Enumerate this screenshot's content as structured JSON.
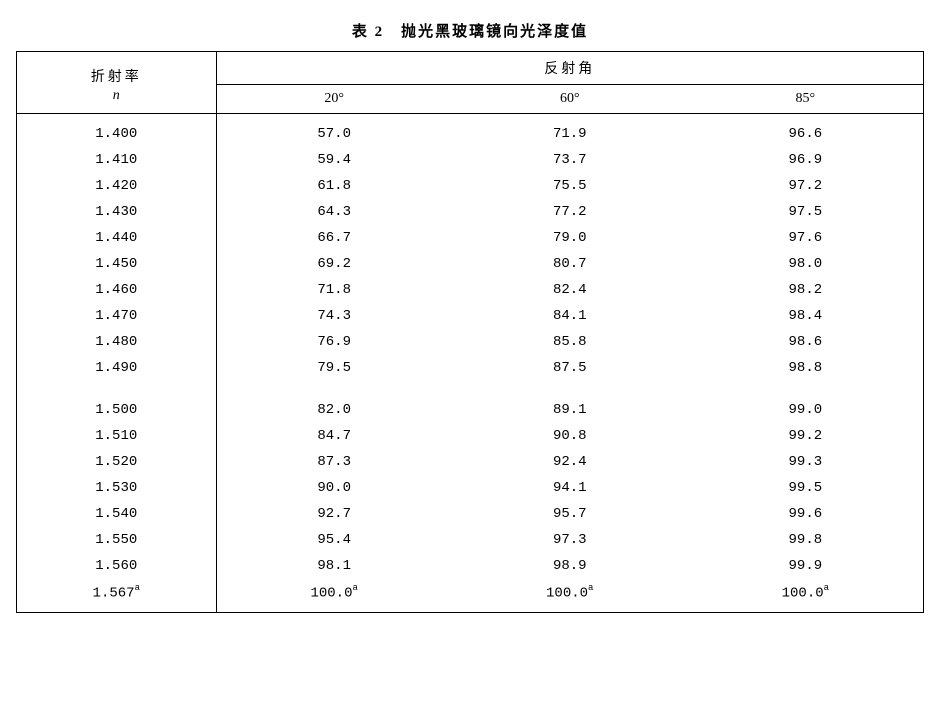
{
  "table": {
    "title": "表 2　抛光黑玻璃镜向光泽度值",
    "header": {
      "n_label_zh": "折射率",
      "n_label_sym": "n",
      "angle_group": "反射角",
      "angles": [
        "20°",
        "60°",
        "85°"
      ]
    },
    "rows_block1": [
      {
        "n": "1.400",
        "a20": "57.0",
        "a60": "71.9",
        "a85": "96.6"
      },
      {
        "n": "1.410",
        "a20": "59.4",
        "a60": "73.7",
        "a85": "96.9"
      },
      {
        "n": "1.420",
        "a20": "61.8",
        "a60": "75.5",
        "a85": "97.2"
      },
      {
        "n": "1.430",
        "a20": "64.3",
        "a60": "77.2",
        "a85": "97.5"
      },
      {
        "n": "1.440",
        "a20": "66.7",
        "a60": "79.0",
        "a85": "97.6"
      },
      {
        "n": "1.450",
        "a20": "69.2",
        "a60": "80.7",
        "a85": "98.0"
      },
      {
        "n": "1.460",
        "a20": "71.8",
        "a60": "82.4",
        "a85": "98.2"
      },
      {
        "n": "1.470",
        "a20": "74.3",
        "a60": "84.1",
        "a85": "98.4"
      },
      {
        "n": "1.480",
        "a20": "76.9",
        "a60": "85.8",
        "a85": "98.6"
      },
      {
        "n": "1.490",
        "a20": "79.5",
        "a60": "87.5",
        "a85": "98.8"
      }
    ],
    "rows_block2": [
      {
        "n": "1.500",
        "a20": "82.0",
        "a60": "89.1",
        "a85": "99.0"
      },
      {
        "n": "1.510",
        "a20": "84.7",
        "a60": "90.8",
        "a85": "99.2"
      },
      {
        "n": "1.520",
        "a20": "87.3",
        "a60": "92.4",
        "a85": "99.3"
      },
      {
        "n": "1.530",
        "a20": "90.0",
        "a60": "94.1",
        "a85": "99.5"
      },
      {
        "n": "1.540",
        "a20": "92.7",
        "a60": "95.7",
        "a85": "99.6"
      },
      {
        "n": "1.550",
        "a20": "95.4",
        "a60": "97.3",
        "a85": "99.8"
      },
      {
        "n": "1.560",
        "a20": "98.1",
        "a60": "98.9",
        "a85": "99.9"
      }
    ],
    "last_row": {
      "n": "1.567",
      "a20": "100.0",
      "a60": "100.0",
      "a85": "100.0",
      "marker": "a"
    },
    "style": {
      "body_font": "Courier New",
      "header_font": "SimSun",
      "border_color": "#000000",
      "bg_color": "#ffffff",
      "title_fontsize": 15,
      "cell_fontsize": 14,
      "col_widths_pct": [
        22,
        26,
        26,
        26
      ]
    }
  }
}
